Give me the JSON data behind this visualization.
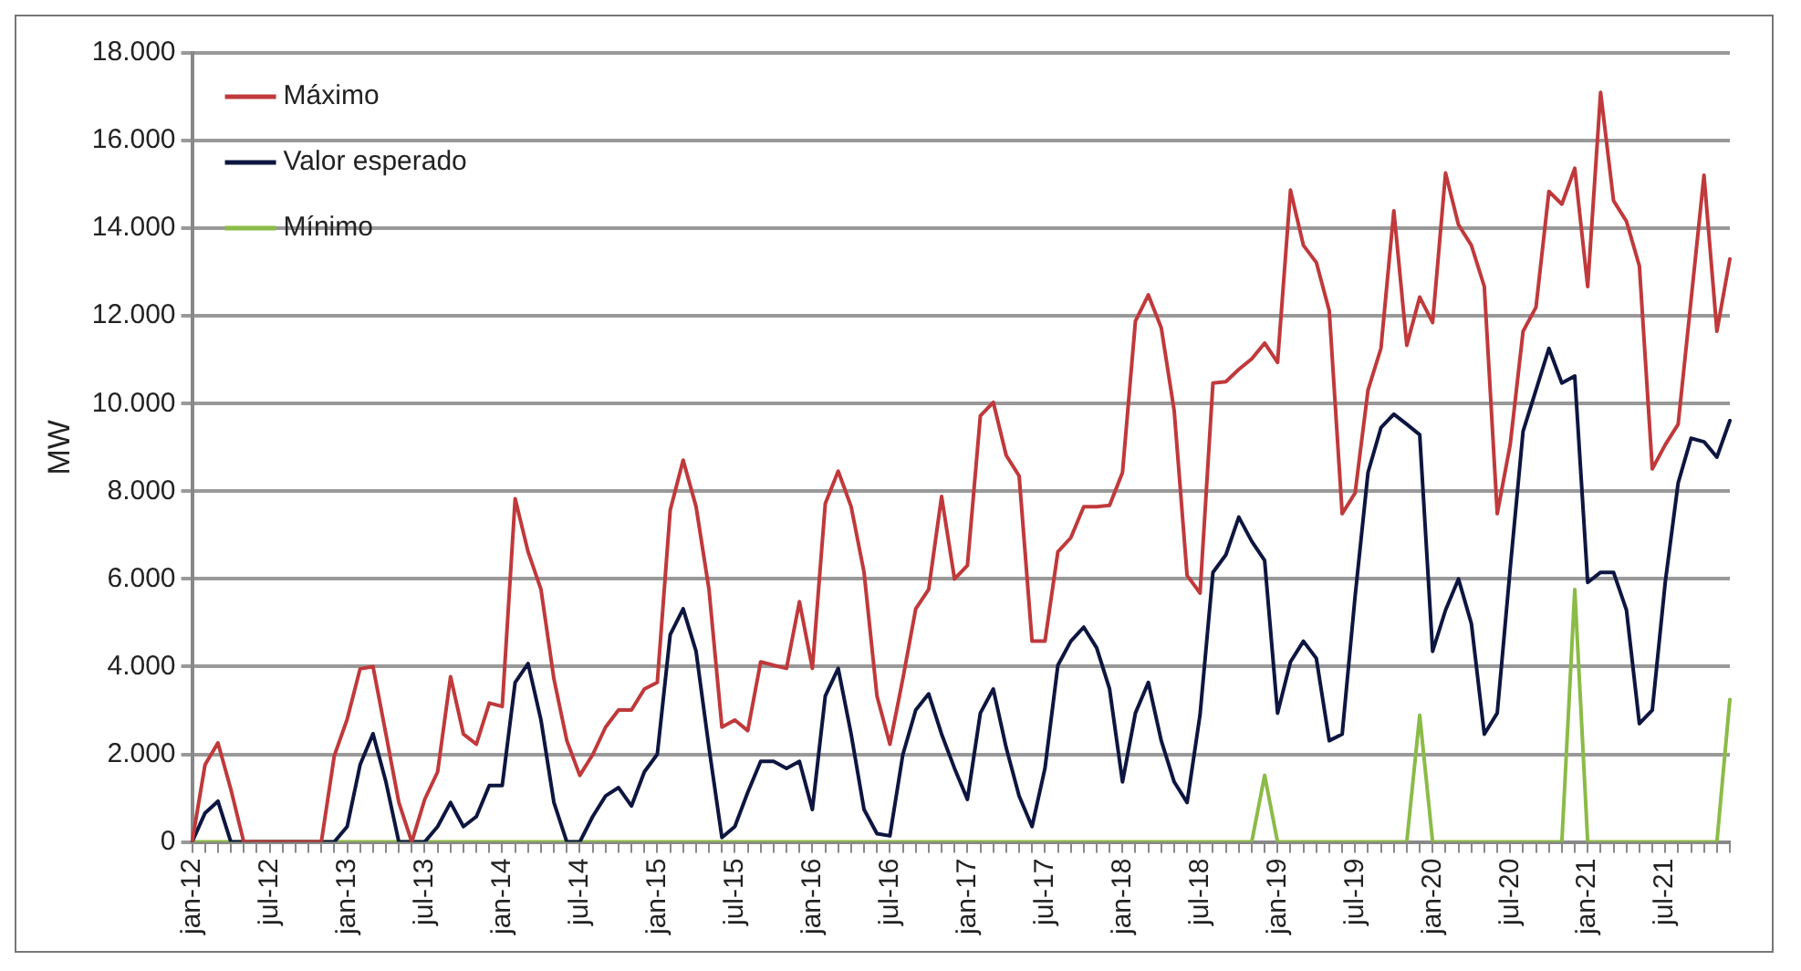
{
  "chart_data": {
    "type": "line",
    "ylabel": "MW",
    "categories": [
      "jan-12",
      null,
      null,
      null,
      null,
      null,
      "jul-12",
      null,
      null,
      null,
      null,
      null,
      "jan-13",
      null,
      null,
      null,
      null,
      null,
      "jul-13",
      null,
      null,
      null,
      null,
      null,
      "jan-14",
      null,
      null,
      null,
      null,
      null,
      "jul-14",
      null,
      null,
      null,
      null,
      null,
      "jan-15",
      null,
      null,
      null,
      null,
      null,
      "jul-15",
      null,
      null,
      null,
      null,
      null,
      "jan-16",
      null,
      null,
      null,
      null,
      null,
      "jul-16",
      null,
      null,
      null,
      null,
      null,
      "jan-17",
      null,
      null,
      null,
      null,
      null,
      "jul-17",
      null,
      null,
      null,
      null,
      null,
      "jan-18",
      null,
      null,
      null,
      null,
      null,
      "jul-18",
      null,
      null,
      null,
      null,
      null,
      "jan-19",
      null,
      null,
      null,
      null,
      null,
      "jul-19",
      null,
      null,
      null,
      null,
      null,
      "jan-20",
      null,
      null,
      null,
      null,
      null,
      "jul-20",
      null,
      null,
      null,
      null,
      null,
      "jan-21",
      null,
      null,
      null,
      null,
      null,
      "jul-21",
      null,
      null,
      null,
      null,
      null
    ],
    "series": [
      {
        "name": "Máximo",
        "color": "#c0393b",
        "values": [
          0,
          1760,
          2260,
          1200,
          0,
          0,
          0,
          0,
          0,
          0,
          0,
          1960,
          2800,
          3950,
          4000,
          2460,
          900,
          0,
          970,
          1600,
          3770,
          2460,
          2230,
          3170,
          3090,
          7830,
          6620,
          5760,
          3720,
          2310,
          1520,
          1990,
          2620,
          3010,
          3010,
          3490,
          3640,
          7570,
          8710,
          7650,
          5760,
          2620,
          2780,
          2540,
          4110,
          4030,
          3960,
          5480,
          3960,
          7720,
          8460,
          7650,
          6150,
          3330,
          2230,
          3720,
          5320,
          5760,
          7880,
          6000,
          6310,
          9720,
          10030,
          8820,
          8350,
          4580,
          4580,
          6620,
          6940,
          7650,
          7650,
          7680,
          8430,
          11880,
          12480,
          11730,
          9840,
          6080,
          5680,
          10470,
          10500,
          10780,
          11020,
          11380,
          10940,
          14870,
          13610,
          13220,
          12120,
          7490,
          7960,
          10310,
          11260,
          14400,
          11330,
          12430,
          11850,
          15260,
          14080,
          13610,
          12670,
          7490,
          9060,
          11650,
          12200,
          14840,
          14550,
          15370,
          12670,
          17100,
          14630,
          14160,
          13140,
          8510,
          9060,
          9530,
          12360,
          15210,
          11650,
          13300
        ]
      },
      {
        "name": "Valor esperado",
        "color": "#0d1640",
        "values": [
          0,
          660,
          930,
          0,
          0,
          0,
          0,
          0,
          0,
          0,
          0,
          0,
          350,
          1760,
          2470,
          1370,
          0,
          0,
          0,
          350,
          900,
          350,
          580,
          1290,
          1290,
          3640,
          4070,
          2780,
          900,
          0,
          0,
          580,
          1050,
          1240,
          820,
          1600,
          2000,
          4730,
          5320,
          4350,
          2150,
          100,
          350,
          1130,
          1840,
          1840,
          1680,
          1840,
          740,
          3330,
          3960,
          2460,
          740,
          190,
          140,
          1990,
          3010,
          3380,
          2460,
          1680,
          970,
          2940,
          3490,
          2150,
          1050,
          350,
          1680,
          4030,
          4580,
          4900,
          4430,
          3490,
          1370,
          2940,
          3640,
          2310,
          1370,
          900,
          2900,
          6150,
          6550,
          7410,
          6860,
          6420,
          2940,
          4110,
          4580,
          4190,
          2310,
          2460,
          5600,
          8430,
          9450,
          9760,
          9530,
          9290,
          4350,
          5290,
          6000,
          4980,
          2460,
          2940,
          6230,
          9370,
          10310,
          11260,
          10470,
          10630,
          5920,
          6150,
          6150,
          5290,
          2700,
          3010,
          5920,
          8190,
          9210,
          9130,
          8780,
          9610
        ]
      },
      {
        "name": "Mínimo",
        "color": "#8bbb47",
        "values": [
          0,
          0,
          0,
          0,
          0,
          0,
          0,
          0,
          0,
          0,
          0,
          0,
          0,
          0,
          0,
          0,
          0,
          0,
          0,
          0,
          0,
          0,
          0,
          0,
          0,
          0,
          0,
          0,
          0,
          0,
          0,
          0,
          0,
          0,
          0,
          0,
          0,
          0,
          0,
          0,
          0,
          0,
          0,
          0,
          0,
          0,
          0,
          0,
          0,
          0,
          0,
          0,
          0,
          0,
          0,
          0,
          0,
          0,
          0,
          0,
          0,
          0,
          0,
          0,
          0,
          0,
          0,
          0,
          0,
          0,
          0,
          0,
          0,
          0,
          0,
          0,
          0,
          0,
          0,
          0,
          0,
          0,
          0,
          1520,
          0,
          0,
          0,
          0,
          0,
          0,
          0,
          0,
          0,
          0,
          0,
          2890,
          0,
          0,
          0,
          0,
          0,
          0,
          0,
          0,
          0,
          0,
          0,
          5760,
          0,
          0,
          0,
          0,
          0,
          0,
          0,
          0,
          0,
          0,
          0,
          3250
        ]
      }
    ],
    "ylim": [
      0,
      18000
    ],
    "yticks": [
      {
        "value": 0,
        "label": "0"
      },
      {
        "value": 2000,
        "label": "2.000"
      },
      {
        "value": 4000,
        "label": "4.000"
      },
      {
        "value": 6000,
        "label": "6.000"
      },
      {
        "value": 8000,
        "label": "8.000"
      },
      {
        "value": 10000,
        "label": "10.000"
      },
      {
        "value": 12000,
        "label": "12.000"
      },
      {
        "value": 14000,
        "label": "14.000"
      },
      {
        "value": 16000,
        "label": "16.000"
      },
      {
        "value": 18000,
        "label": "18.000"
      }
    ],
    "grid": "y",
    "legend": "top left",
    "marker": "none",
    "line_style": "solid"
  }
}
